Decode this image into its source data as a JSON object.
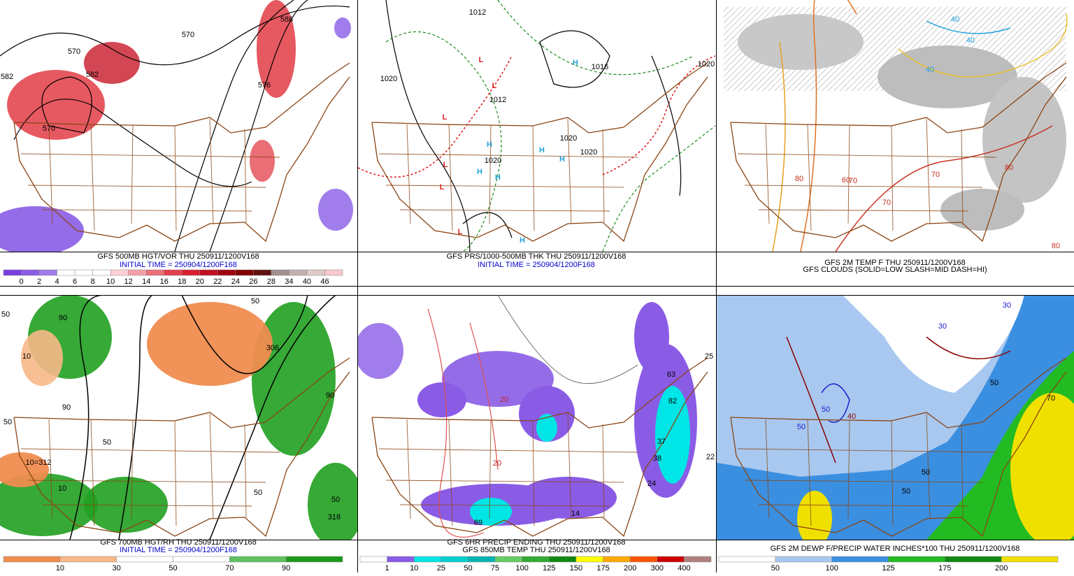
{
  "panels": [
    {
      "caption_lines": [
        "GFS 500MB HGT/VOR THU 250911/1200V168",
        "INITIAL TIME = 250904/1200F168"
      ],
      "map_labels": [
        "582",
        "570",
        "570",
        "588",
        "576",
        "582",
        "570"
      ],
      "colorbar": {
        "labels": [
          0,
          2,
          4,
          6,
          8,
          10,
          12,
          14,
          16,
          18,
          20,
          22,
          24,
          26,
          28,
          34,
          40,
          46
        ],
        "colors": [
          "#7a3ee0",
          "#8a5ce6",
          "#a07ce8",
          "#ffffff",
          "#ffffff",
          "#ffffff",
          "#ffd0d8",
          "#f4a0a8",
          "#ec7078",
          "#e44050",
          "#d82030",
          "#c01020",
          "#a00010",
          "#800000",
          "#601010",
          "#a09090",
          "#c0b0b0",
          "#e0c8c8",
          "#f8c8d0"
        ]
      }
    },
    {
      "caption_lines": [
        "GFS PRS/1000-500MB THK THU 250911/1200V168",
        "INITIAL TIME = 250904/1200F168"
      ],
      "map_labels": [
        "1012",
        "1020",
        "1020",
        "1016",
        "1012",
        "1020",
        "1020",
        "1020",
        "L",
        "L",
        "L",
        "L",
        "L",
        "L",
        "H",
        "H",
        "H",
        "H",
        "H",
        "H",
        "H"
      ]
    },
    {
      "caption_lines": [
        "GFS 2M TEMP F THU 250911/1200V168",
        "GFS CLOUDS (SOLID=LOW SLASH=MID DASH=HI)"
      ],
      "map_labels": [
        "40",
        "40",
        "40",
        "60",
        "70",
        "80",
        "70",
        "70",
        "80",
        "80"
      ]
    },
    {
      "caption_lines": [
        "GFS 700MB HGT/RH THU 250911/1200V168",
        "INITIAL TIME = 250904/1200F168"
      ],
      "map_labels": [
        "50",
        "90",
        "10",
        "50",
        "90",
        "50",
        "10=312",
        "10",
        "306",
        "50",
        "90",
        "50",
        "50",
        "318"
      ],
      "colorbar": {
        "labels": [
          10,
          30,
          50,
          70,
          90
        ],
        "colors": [
          "#f08c50",
          "#f8b888",
          "#ffffff",
          "#ffffff",
          "#60c060",
          "#1a9a1a"
        ]
      }
    },
    {
      "caption_lines": [
        "GFS 6HR PRECIP ENDING THU 250911/1200V168",
        "GFS 850MB TEMP THU 250911/1200V168"
      ],
      "map_labels": [
        "25",
        "63",
        "82",
        "37",
        "38",
        "24",
        "22",
        "14",
        "69",
        "20",
        "20"
      ],
      "colorbar": {
        "labels": [
          1,
          10,
          25,
          50,
          75,
          100,
          125,
          150,
          175,
          200,
          300,
          400
        ],
        "colors": [
          "#ffffff",
          "#8a5ce6",
          "#00e5e5",
          "#00cfcf",
          "#00b4b4",
          "#66cc66",
          "#33aa33",
          "#118811",
          "#ffff00",
          "#ffaa00",
          "#ff5500",
          "#cc0000",
          "#b08080"
        ]
      }
    },
    {
      "caption_lines": [
        "GFS 2M DEWP F/PRECIP WATER INCHES*100 THU 250911/1200V168"
      ],
      "map_labels": [
        "30",
        "30",
        "50",
        "50",
        "40",
        "50",
        "70",
        "50",
        "50"
      ],
      "colorbar": {
        "labels": [
          50,
          100,
          125,
          175,
          200
        ],
        "colors": [
          "#ffffff",
          "#a8c8f0",
          "#3b8fe0",
          "#22bb22",
          "#118811",
          "#f0e000"
        ]
      }
    }
  ]
}
